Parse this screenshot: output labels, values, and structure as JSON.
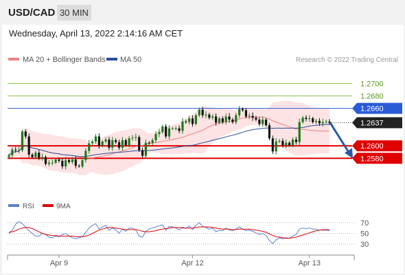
{
  "header": {
    "symbol": "USD/CAD",
    "timeframe": "30 MIN",
    "timestamp": "Wednesday, April 13, 2022 2:14:16 AM CET"
  },
  "legend": {
    "ma20_label": "MA 20 + Bollinger Bands",
    "ma50_label": "MA 50",
    "watermark": "Research © 2022 Trading Central",
    "rsi_label": "RSI",
    "rsi_ma_label": "9MA"
  },
  "colors": {
    "ma20": "#f08080",
    "ma50": "#2a4d9a",
    "bollinger_fill": "#fde0e0",
    "resistance_green": "#8bc34a",
    "support_red": "#e00000",
    "current_blue": "#2a5bd7",
    "candle_up": "#1a7a1a",
    "candle_down": "#111111",
    "rsi": "#5b7fd6",
    "rsi_ma": "#e00000",
    "arrow": "#2a5aa8"
  },
  "chart_data": [
    {
      "type": "candlestick",
      "ylim": [
        1.2545,
        1.2728
      ],
      "levels": [
        {
          "value": 1.27,
          "label": "1.2700",
          "style": "green-line"
        },
        {
          "value": 1.268,
          "label": "1.2680",
          "style": "green-line"
        },
        {
          "value": 1.266,
          "label": "1.2660",
          "style": "blue-badge"
        },
        {
          "value": 1.2637,
          "label": "1.2637",
          "style": "current-price"
        },
        {
          "value": 1.26,
          "label": "1.2600",
          "style": "red-badge"
        },
        {
          "value": 1.258,
          "label": "1.2580",
          "style": "red-badge"
        }
      ],
      "x_labels": [
        "Apr 9",
        "Apr 12",
        "Apr 13"
      ],
      "x_label_indices": [
        15,
        55,
        90
      ],
      "close": [
        1.2585,
        1.2594,
        1.2593,
        1.2593,
        1.2623,
        1.2615,
        1.2586,
        1.2582,
        1.2589,
        1.2581,
        1.2582,
        1.2571,
        1.2573,
        1.2573,
        1.2578,
        1.2576,
        1.2567,
        1.2577,
        1.2574,
        1.2578,
        1.2568,
        1.2567,
        1.2577,
        1.2592,
        1.2604,
        1.2607,
        1.2615,
        1.26,
        1.2607,
        1.261,
        1.2597,
        1.2609,
        1.2606,
        1.2597,
        1.2609,
        1.2601,
        1.2612,
        1.2613,
        1.2614,
        1.2593,
        1.2584,
        1.2605,
        1.2604,
        1.2609,
        1.2619,
        1.2622,
        1.2631,
        1.2615,
        1.2628,
        1.2628,
        1.2628,
        1.2624,
        1.2639,
        1.2638,
        1.2644,
        1.2635,
        1.2649,
        1.2658,
        1.2649,
        1.265,
        1.2645,
        1.2647,
        1.2637,
        1.2644,
        1.2638,
        1.2647,
        1.2642,
        1.2638,
        1.2649,
        1.2659,
        1.2657,
        1.2647,
        1.2648,
        1.2645,
        1.2642,
        1.2635,
        1.2642,
        1.2633,
        1.2612,
        1.2591,
        1.2607,
        1.2608,
        1.2601,
        1.2605,
        1.2601,
        1.261,
        1.2606,
        1.2638,
        1.2645,
        1.2643,
        1.2644,
        1.2638,
        1.264,
        1.2636,
        1.2638,
        1.2639,
        1.2637
      ],
      "series": [
        {
          "name": "MA 20 + Bollinger Bands"
        },
        {
          "name": "MA 50"
        }
      ],
      "forecast": {
        "from": 1.2637,
        "to": 1.2582
      }
    },
    {
      "type": "line",
      "ylim": [
        20,
        80
      ],
      "levels": [
        70,
        50,
        30
      ],
      "level_labels": [
        "70",
        "50",
        "30"
      ],
      "series": [
        {
          "name": "RSI",
          "values": [
            50,
            56,
            67,
            72,
            68,
            62,
            55,
            50,
            45,
            45,
            50,
            48,
            43,
            42,
            45,
            44,
            48,
            50,
            45,
            42,
            40,
            42,
            44,
            52,
            60,
            65,
            68,
            58,
            62,
            65,
            56,
            60,
            57,
            50,
            58,
            54,
            60,
            60,
            56,
            45,
            43,
            54,
            58,
            60,
            62,
            64,
            66,
            56,
            63,
            62,
            60,
            57,
            62,
            59,
            64,
            57,
            65,
            70,
            63,
            61,
            58,
            60,
            53,
            56,
            55,
            60,
            56,
            55,
            58,
            62,
            58,
            55,
            56,
            54,
            51,
            48,
            50,
            46,
            37,
            31,
            38,
            42,
            40,
            42,
            41,
            45,
            48,
            58,
            60,
            59,
            60,
            58,
            58,
            56,
            56,
            56,
            55
          ]
        },
        {
          "name": "9MA",
          "values": [
            52,
            53,
            55,
            58,
            60,
            61,
            61,
            59,
            56,
            53,
            50,
            48,
            47,
            46,
            46,
            45,
            45,
            45,
            45,
            45,
            44,
            44,
            44,
            45,
            47,
            50,
            53,
            56,
            58,
            60,
            61,
            61,
            60,
            59,
            58,
            57,
            57,
            57,
            57,
            56,
            54,
            53,
            53,
            54,
            55,
            57,
            58,
            59,
            60,
            61,
            61,
            61,
            60,
            60,
            60,
            60,
            61,
            62,
            62,
            62,
            62,
            61,
            60,
            59,
            58,
            58,
            58,
            57,
            57,
            58,
            58,
            58,
            58,
            57,
            56,
            55,
            54,
            52,
            49,
            46,
            44,
            43,
            42,
            41,
            41,
            42,
            43,
            45,
            47,
            49,
            51,
            53,
            55,
            56,
            57,
            57,
            57
          ]
        }
      ]
    }
  ]
}
